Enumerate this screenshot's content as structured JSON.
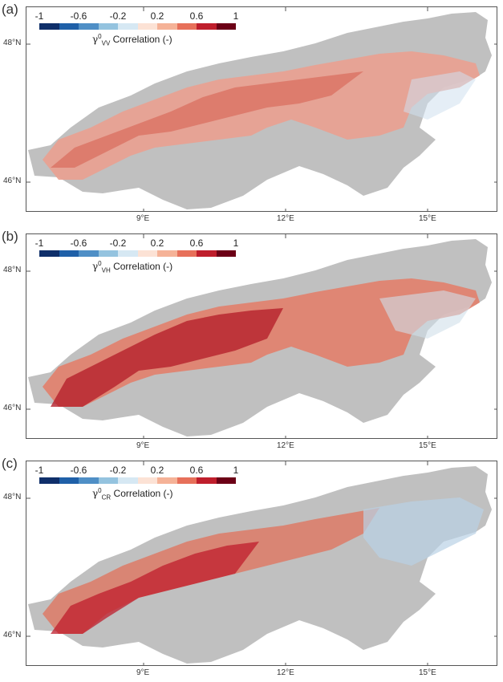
{
  "colorbar": {
    "ticks": [
      "-1",
      "-0.6",
      "-0.2",
      "0.2",
      "0.6",
      "1"
    ],
    "colors": [
      "#0f2f6a",
      "#1f60a8",
      "#4f8fc6",
      "#94c3df",
      "#d6e8f3",
      "#fce2d5",
      "#f5b297",
      "#e7705a",
      "#bf1e2c",
      "#6c0016"
    ],
    "label_suffix": "Correlation (-)"
  },
  "lat_labels": [
    "48°N",
    "46°N"
  ],
  "lon_labels": [
    "9°E",
    "12°E",
    "15°E"
  ],
  "background_color": "#c0c0c0",
  "panels": [
    {
      "label": "(a)",
      "gamma": "γ",
      "sup": "0",
      "sub": "VV"
    },
    {
      "label": "(b)",
      "gamma": "γ",
      "sup": "0",
      "sub": "VH"
    },
    {
      "label": "(c)",
      "gamma": "γ",
      "sup": "0",
      "sub": "CR"
    }
  ]
}
